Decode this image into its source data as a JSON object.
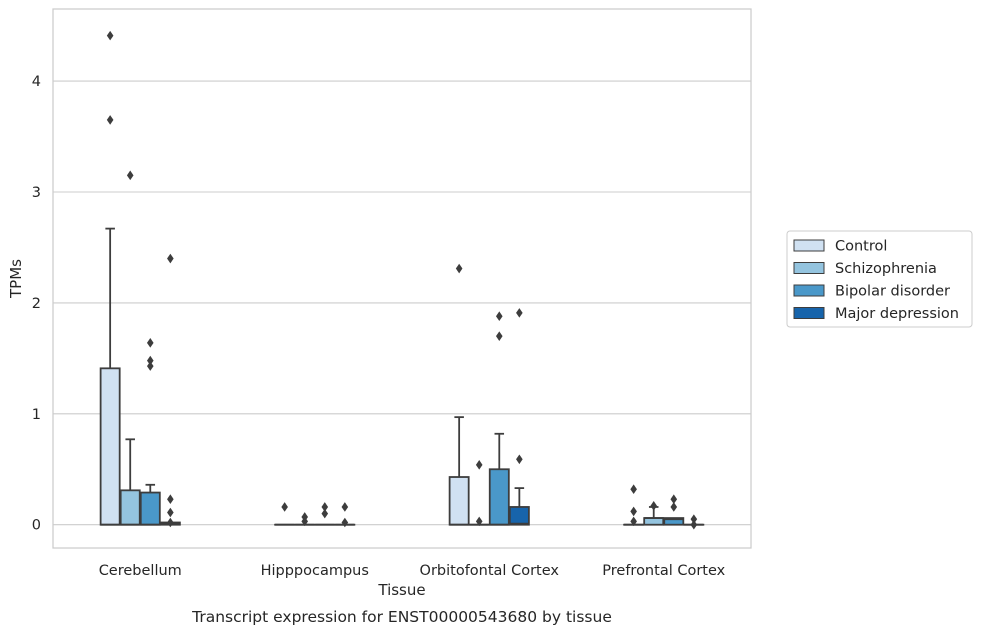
{
  "chart_data": {
    "type": "box",
    "title": "",
    "caption": "Transcript expression for ENST00000543680 by tissue",
    "xlabel": "Tissue",
    "ylabel": "TPMs",
    "ylim": [
      -0.21,
      4.65
    ],
    "yticks": [
      0,
      1,
      2,
      3,
      4
    ],
    "categories": [
      "Cerebellum",
      "Hipppocampus",
      "Orbitofontal Cortex",
      "Prefrontal Cortex"
    ],
    "grid": "horizontal",
    "legend_position": "right",
    "series": [
      {
        "name": "Control",
        "color": "#d0e1f2",
        "boxes": [
          {
            "q1": 0,
            "median": 0,
            "q3": 1.41,
            "whisker_low": 0,
            "whisker_high": 2.67,
            "outliers": [
              3.65,
              4.41
            ]
          },
          {
            "q1": 0,
            "median": 0,
            "q3": 0,
            "whisker_low": 0,
            "whisker_high": 0,
            "outliers": [
              0.16
            ]
          },
          {
            "q1": 0,
            "median": 0,
            "q3": 0.43,
            "whisker_low": 0,
            "whisker_high": 0.97,
            "outliers": [
              2.31
            ]
          },
          {
            "q1": 0,
            "median": 0,
            "q3": 0,
            "whisker_low": 0,
            "whisker_high": 0,
            "outliers": [
              0.32,
              0.12,
              0.03
            ]
          }
        ]
      },
      {
        "name": "Schizophrenia",
        "color": "#94c4df",
        "boxes": [
          {
            "q1": 0,
            "median": 0,
            "q3": 0.31,
            "whisker_low": 0,
            "whisker_high": 0.77,
            "outliers": [
              3.15
            ]
          },
          {
            "q1": 0,
            "median": 0,
            "q3": 0,
            "whisker_low": 0,
            "whisker_high": 0,
            "outliers": [
              0.07,
              0.03
            ]
          },
          {
            "q1": 0,
            "median": 0,
            "q3": 0,
            "whisker_low": 0,
            "whisker_high": 0,
            "outliers": [
              0.54,
              0.03
            ]
          },
          {
            "q1": 0,
            "median": 0.06,
            "q3": 0.06,
            "whisker_low": 0,
            "whisker_high": 0.16,
            "outliers": [
              0.17
            ]
          }
        ]
      },
      {
        "name": "Bipolar disorder",
        "color": "#4a98c9",
        "boxes": [
          {
            "q1": 0,
            "median": 0,
            "q3": 0.29,
            "whisker_low": 0,
            "whisker_high": 0.36,
            "outliers": [
              1.64,
              1.48,
              1.43
            ]
          },
          {
            "q1": 0,
            "median": 0,
            "q3": 0,
            "whisker_low": 0,
            "whisker_high": 0,
            "outliers": [
              0.16,
              0.1
            ]
          },
          {
            "q1": 0,
            "median": 0,
            "q3": 0.5,
            "whisker_low": 0,
            "whisker_high": 0.82,
            "outliers": [
              1.88,
              1.7
            ]
          },
          {
            "q1": 0,
            "median": 0.05,
            "q3": 0.06,
            "whisker_low": 0,
            "whisker_high": 0.06,
            "outliers": [
              0.23,
              0.16
            ]
          }
        ]
      },
      {
        "name": "Major depression",
        "color": "#1764ab",
        "boxes": [
          {
            "q1": 0,
            "median": 0.01,
            "q3": 0.02,
            "whisker_low": 0,
            "whisker_high": 0.02,
            "outliers": [
              2.4,
              0.23,
              0.11,
              0.02
            ]
          },
          {
            "q1": 0,
            "median": 0,
            "q3": 0,
            "whisker_low": 0,
            "whisker_high": 0,
            "outliers": [
              0.16,
              0.02
            ]
          },
          {
            "q1": 0,
            "median": 0.01,
            "q3": 0.16,
            "whisker_low": 0,
            "whisker_high": 0.33,
            "outliers": [
              1.91,
              0.59
            ]
          },
          {
            "q1": 0,
            "median": 0,
            "q3": 0,
            "whisker_low": 0,
            "whisker_high": 0,
            "outliers": [
              0.05,
              0.0
            ]
          }
        ]
      }
    ]
  }
}
